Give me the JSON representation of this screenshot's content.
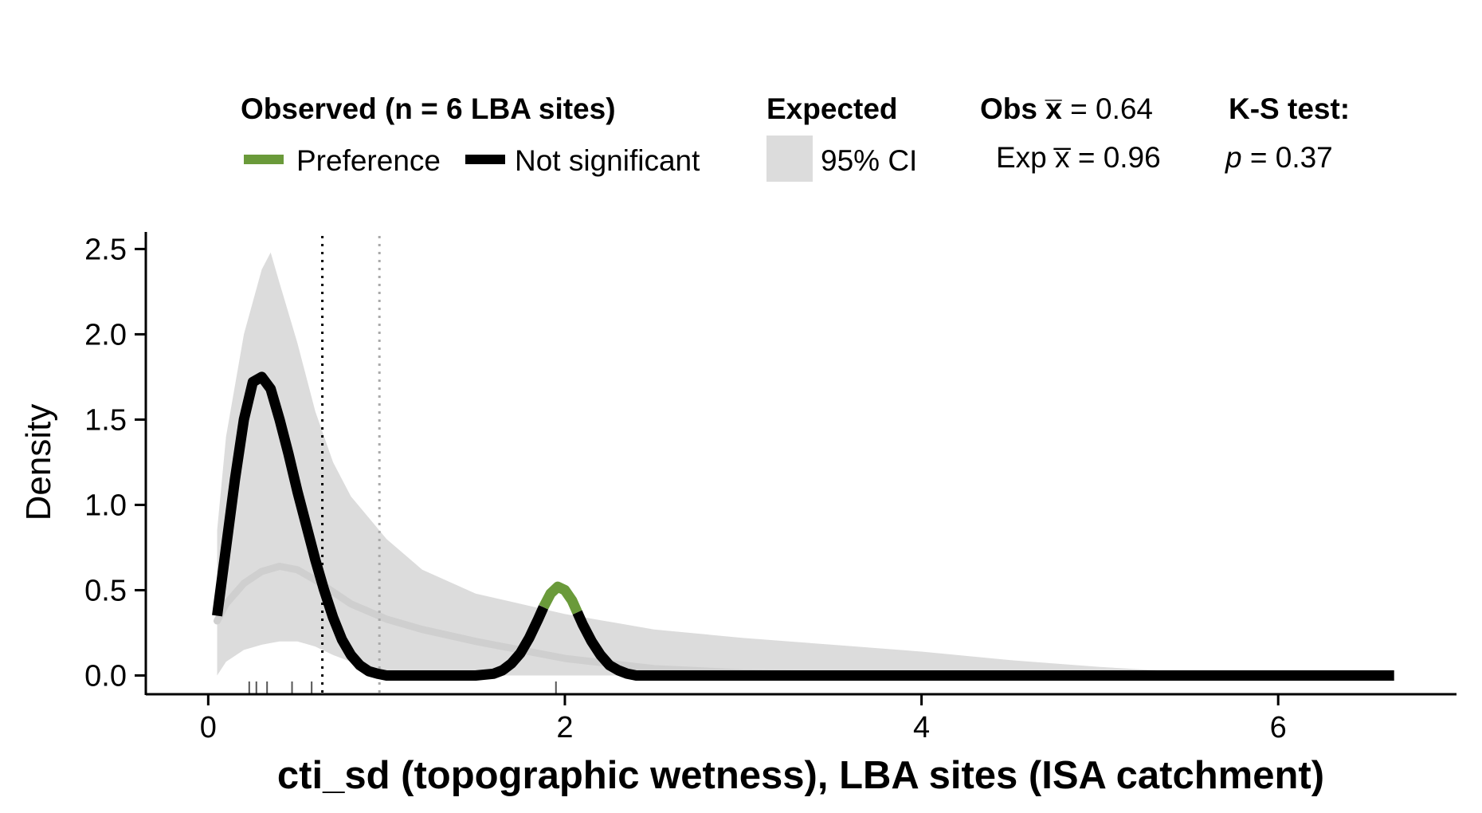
{
  "legend": {
    "observed_title": "Observed (n = 6 LBA sites)",
    "preference_label": "Preference",
    "not_significant_label": "Not significant",
    "expected_title": "Expected",
    "ci_label": "95% CI",
    "obs_mean_label": "Obs x̅ = 0.64",
    "exp_mean_label": "Exp x̅ = 0.96",
    "ks_title": "K-S test:",
    "ks_p_symbol": "p",
    "ks_p_value": " = 0.37"
  },
  "chart_data": {
    "type": "area",
    "xlabel": "cti_sd (topographic wetness), LBA sites (ISA catchment)",
    "ylabel": "Density",
    "xlim": [
      -0.35,
      7.0
    ],
    "ylim": [
      -0.11,
      2.6
    ],
    "x_ticks": [
      0,
      2,
      4,
      6
    ],
    "y_ticks": [
      0.0,
      0.5,
      1.0,
      1.5,
      2.0,
      2.5
    ],
    "y_tick_labels": [
      "0.0",
      "0.5",
      "1.0",
      "1.5",
      "2.0",
      "2.5"
    ],
    "colors": {
      "preference": "#6a9a3a",
      "not_significant": "#000000",
      "ci_band": "#dcdcdc",
      "expected_mean": "#cfcfcf",
      "obs_mean_line": "#000000",
      "exp_mean_line": "#aaaaaa"
    },
    "obs_mean": 0.64,
    "exp_mean": 0.96,
    "ks_p": 0.37,
    "rug_points": [
      0.23,
      0.27,
      0.33,
      0.47,
      0.58,
      1.95
    ],
    "expected_ci": {
      "x": [
        0.05,
        0.1,
        0.2,
        0.3,
        0.35,
        0.4,
        0.5,
        0.6,
        0.7,
        0.8,
        1.0,
        1.2,
        1.5,
        2.0,
        2.5,
        3.0,
        3.5,
        4.0,
        4.5,
        5.0,
        5.5,
        6.0,
        6.3
      ],
      "upper": [
        0.85,
        1.4,
        2.0,
        2.38,
        2.48,
        2.3,
        1.95,
        1.55,
        1.25,
        1.05,
        0.8,
        0.62,
        0.48,
        0.36,
        0.27,
        0.22,
        0.18,
        0.14,
        0.09,
        0.05,
        0.02,
        0.005,
        0.0
      ],
      "lower": [
        0.0,
        0.08,
        0.15,
        0.18,
        0.19,
        0.2,
        0.2,
        0.17,
        0.12,
        0.08,
        0.03,
        0.01,
        0.0,
        0.0,
        0.0,
        0.0,
        0.0,
        0.0,
        0.0,
        0.0,
        0.0,
        0.0,
        0.0
      ]
    },
    "expected_mean_curve": {
      "x": [
        0.05,
        0.1,
        0.2,
        0.3,
        0.4,
        0.5,
        0.6,
        0.7,
        0.8,
        1.0,
        1.2,
        1.5,
        2.0,
        2.5,
        3.0,
        3.5,
        4.0
      ],
      "y": [
        0.32,
        0.42,
        0.54,
        0.61,
        0.64,
        0.62,
        0.56,
        0.49,
        0.42,
        0.33,
        0.27,
        0.2,
        0.1,
        0.04,
        0.015,
        0.005,
        0.0
      ]
    },
    "series": [
      {
        "name": "Not significant",
        "x": [
          0.05,
          0.1,
          0.15,
          0.2,
          0.25,
          0.3,
          0.35,
          0.4,
          0.45,
          0.5,
          0.55,
          0.6,
          0.65,
          0.7,
          0.75,
          0.8,
          0.85,
          0.9,
          0.95,
          1.0,
          1.1,
          1.2,
          1.5,
          1.6,
          1.65,
          1.7,
          1.75,
          1.8,
          1.85,
          1.88
        ],
        "y": [
          0.35,
          0.75,
          1.15,
          1.5,
          1.72,
          1.75,
          1.68,
          1.5,
          1.3,
          1.08,
          0.88,
          0.68,
          0.5,
          0.34,
          0.21,
          0.12,
          0.06,
          0.025,
          0.01,
          0.0,
          0.0,
          0.0,
          0.0,
          0.01,
          0.03,
          0.07,
          0.13,
          0.22,
          0.33,
          0.4
        ]
      },
      {
        "name": "Preference",
        "x": [
          1.88,
          1.92,
          1.96,
          2.0,
          2.04,
          2.07
        ],
        "y": [
          0.4,
          0.48,
          0.52,
          0.5,
          0.44,
          0.37
        ]
      },
      {
        "name": "Not significant",
        "x": [
          2.07,
          2.1,
          2.15,
          2.2,
          2.25,
          2.3,
          2.35,
          2.4,
          2.5,
          3.0,
          4.0,
          5.0,
          6.0,
          6.65
        ],
        "y": [
          0.37,
          0.3,
          0.2,
          0.12,
          0.06,
          0.03,
          0.01,
          0.0,
          0.0,
          0.0,
          0.0,
          0.0,
          0.0,
          0.0
        ]
      }
    ]
  }
}
